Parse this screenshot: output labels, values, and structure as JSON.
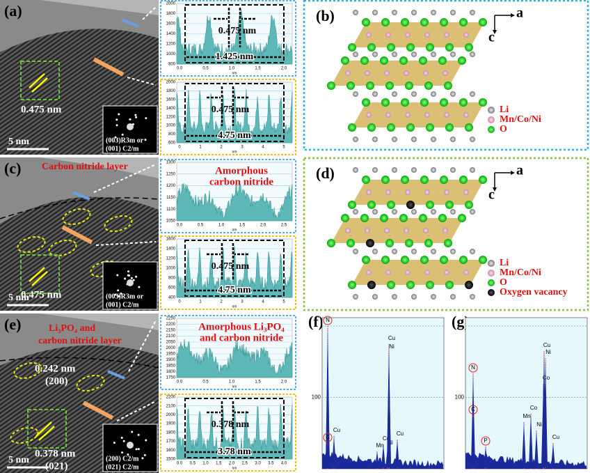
{
  "panels": {
    "a": {
      "label": "(a)",
      "scale_bar": "5 nm",
      "spacing": "0.475 nm",
      "fft": [
        "(003)R3m or",
        "(001) C2/m"
      ]
    },
    "b": {
      "label": "(b)",
      "axis_a": "a",
      "axis_c": "c",
      "legend": [
        "Li",
        "Mn/Co/Ni",
        "O"
      ]
    },
    "c": {
      "label": "(c)",
      "layer": "Carbon nitride layer",
      "scale_bar": "5 nm",
      "spacing": "0.475 nm",
      "fft": [
        "(003)R3m or",
        "(001) C2/m"
      ]
    },
    "d": {
      "label": "(d)",
      "axis_a": "a",
      "axis_c": "c",
      "legend": [
        "Li",
        "Mn/Co/Ni",
        "O",
        "Oxygen vacancy"
      ]
    },
    "e": {
      "label": "(e)",
      "layer": [
        "Li₃PO₄ and",
        "carbon nitride layer"
      ],
      "spacing_1": "0.242 nm",
      "plane_1": "(200)",
      "spacing_2": "0.378 nm",
      "plane_2": "(021)",
      "scale_bar": "5 nm",
      "fft": [
        "(200) C2/m",
        "(021) C2/m"
      ]
    },
    "f": {
      "label": "(f)",
      "gridline_label": "100",
      "peaks": [
        "N",
        "C",
        "Cu",
        "Co",
        "Mn",
        "Ni",
        "Ni",
        "Cu",
        "Cu"
      ]
    },
    "g": {
      "label": "(g)",
      "gridline_label": "100",
      "peaks": [
        "N",
        "C",
        "P",
        "Mn",
        "Co",
        "Ni",
        "Co",
        "Cu",
        "Ni",
        "Cu"
      ]
    }
  },
  "profiles": [
    {
      "y_tick_labels": [
        "2000",
        "1800",
        "1600",
        "1400",
        "1200",
        "1000",
        "800"
      ],
      "x_tick_labels": [
        "0.0",
        "0.5",
        "1.0",
        "1.5",
        "2.0"
      ],
      "x_axis_label": "nm",
      "spacing": "0.475 nm",
      "span": "1.425 nm"
    },
    {
      "y_tick_labels": [
        "2000",
        "1800",
        "1600",
        "1400",
        "1200",
        "1000",
        "800",
        "600"
      ],
      "x_tick_labels": [
        "0",
        "1",
        "2",
        "3",
        "4",
        "5"
      ],
      "x_axis_label": "nm",
      "spacing": "0.475 nm",
      "span": "4.75 nm"
    },
    {
      "y_tick_labels": [
        "1300",
        "1250",
        "1200",
        "1150",
        "1100",
        "1050"
      ],
      "x_tick_labels": [
        "0.0",
        "0.5",
        "1.0",
        "1.5",
        "2.0",
        "2.5"
      ],
      "x_axis_label": "nm",
      "note": [
        "Amorphous",
        "carbon nitride"
      ]
    },
    {
      "y_tick_labels": [
        "1600",
        "1400",
        "1200",
        "1000",
        "800",
        "600",
        "400"
      ],
      "x_tick_labels": [
        "0",
        "1",
        "2",
        "3",
        "4",
        "5"
      ],
      "x_axis_label": "nm",
      "spacing": "0.475 nm",
      "span": "4.75 nm"
    },
    {
      "y_tick_labels": [
        "2250",
        "2200",
        "2150",
        "2100",
        "2050",
        "2000",
        "1950",
        "1900",
        "1850",
        "1800",
        "1750"
      ],
      "x_tick_labels": [
        "0.0",
        "0.5",
        "1.0",
        "1.5",
        "2.0"
      ],
      "x_axis_label": "nm",
      "note": [
        "Amorphous Li₃PO₄",
        "and carbon nitride"
      ]
    },
    {
      "y_tick_labels": [
        "2200",
        "2100",
        "2000",
        "1900",
        "1800",
        "1700",
        "1600",
        "1500"
      ],
      "x_tick_labels": [
        "0.0",
        "0.5",
        "1.0",
        "1.5",
        "2.0",
        "2.5",
        "3.0",
        "3.5",
        "4.0"
      ],
      "x_axis_label": "nm",
      "spacing": "0.378 nm",
      "span": "3.78 nm"
    }
  ]
}
